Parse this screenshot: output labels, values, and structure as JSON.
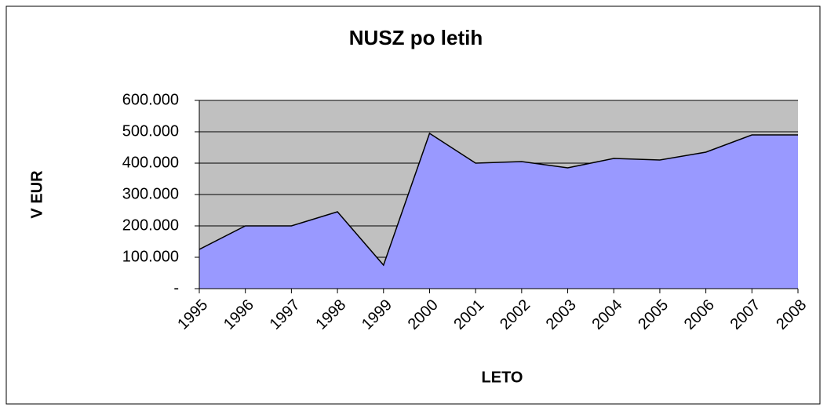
{
  "chart_data": {
    "type": "area",
    "title": "NUSZ po letih",
    "x_label": "LETO",
    "y_label": "V EUR",
    "categories": [
      "1995",
      "1996",
      "1997",
      "1998",
      "1999",
      "2000",
      "2001",
      "2002",
      "2003",
      "2004",
      "2005",
      "2006",
      "2007",
      "2008"
    ],
    "values": [
      125000,
      200000,
      200000,
      245000,
      75000,
      495000,
      400000,
      405000,
      385000,
      415000,
      410000,
      435000,
      490000,
      490000
    ],
    "color": "#9999ff",
    "ylim": [
      0,
      600000
    ],
    "yticks": [
      {
        "value": 0,
        "label": "-"
      },
      {
        "value": 100000,
        "label": "100.000"
      },
      {
        "value": 200000,
        "label": "200.000"
      },
      {
        "value": 300000,
        "label": "300.000"
      },
      {
        "value": 400000,
        "label": "400.000"
      },
      {
        "value": 500000,
        "label": "500.000"
      },
      {
        "value": 600000,
        "label": "600.000"
      }
    ],
    "grid": true
  }
}
